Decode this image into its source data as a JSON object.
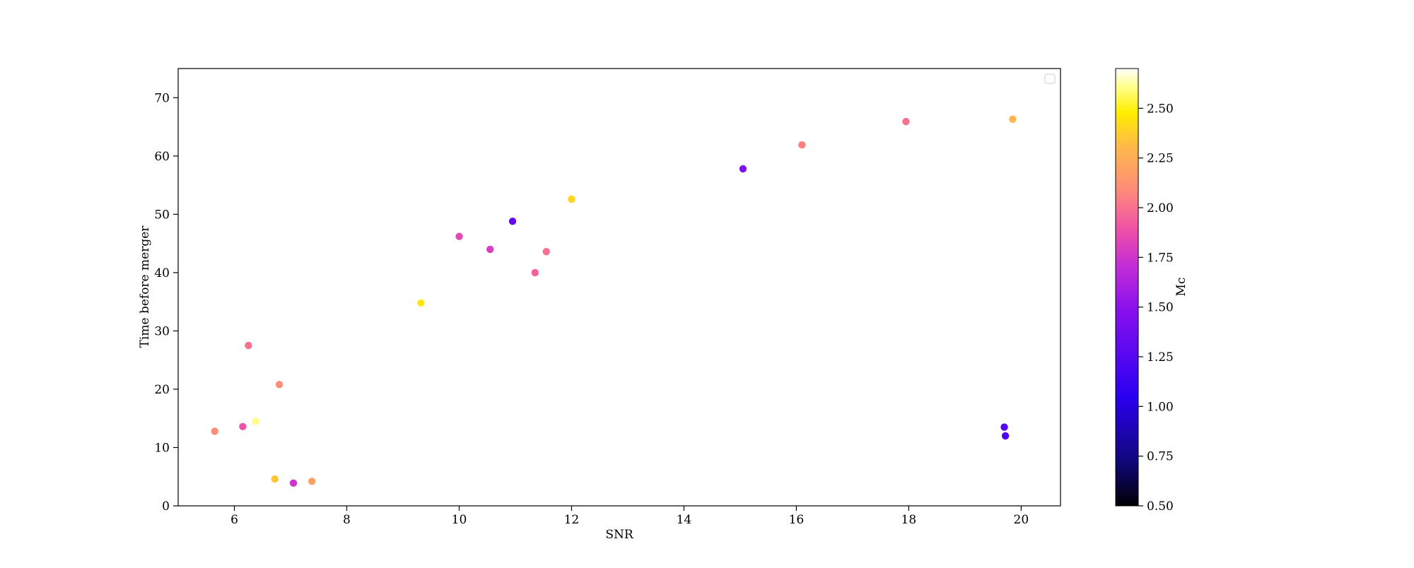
{
  "chart_data": {
    "type": "scatter",
    "title": "",
    "xlabel": "SNR",
    "ylabel": "Time before merger",
    "xlim": [
      5.0,
      20.7
    ],
    "ylim": [
      0,
      75
    ],
    "xticks": [
      6,
      8,
      10,
      12,
      14,
      16,
      18,
      20
    ],
    "yticks": [
      0,
      10,
      20,
      30,
      40,
      50,
      60,
      70
    ],
    "xtick_labels": [
      "6",
      "8",
      "10",
      "12",
      "14",
      "16",
      "18",
      "20"
    ],
    "ytick_labels": [
      "0",
      "10",
      "20",
      "30",
      "40",
      "50",
      "60",
      "70"
    ],
    "grid": false,
    "legend": {
      "placement": "top-right",
      "entries": []
    },
    "colorbar": {
      "label": "Mc",
      "colormap": "plasma",
      "range": [
        0.5,
        2.7
      ],
      "ticks": [
        0.5,
        0.75,
        1.0,
        1.25,
        1.5,
        1.75,
        2.0,
        2.25,
        2.5
      ],
      "tick_labels": [
        "0.50",
        "0.75",
        "1.00",
        "1.25",
        "1.50",
        "1.75",
        "2.00",
        "2.25",
        "2.50"
      ]
    },
    "series": [
      {
        "x": [
          5.65,
          6.15,
          6.25,
          6.38,
          6.72,
          6.8,
          7.05,
          7.38,
          9.32,
          10.0,
          10.95,
          10.55,
          11.35,
          11.55,
          12.0,
          15.05,
          16.1,
          17.95,
          19.85,
          19.7,
          19.72
        ],
        "y": [
          12.8,
          13.6,
          27.5,
          14.5,
          4.6,
          20.8,
          3.9,
          4.2,
          34.8,
          46.2,
          48.8,
          44.0,
          40.0,
          43.6,
          52.6,
          57.8,
          61.9,
          65.9,
          66.3,
          13.5,
          12.0
        ],
        "mc": [
          2.1,
          1.9,
          2.0,
          2.6,
          2.35,
          2.1,
          1.75,
          2.2,
          2.45,
          1.85,
          1.3,
          1.8,
          1.95,
          2.0,
          2.4,
          1.45,
          2.05,
          2.0,
          2.3,
          1.25,
          1.2
        ]
      }
    ]
  }
}
